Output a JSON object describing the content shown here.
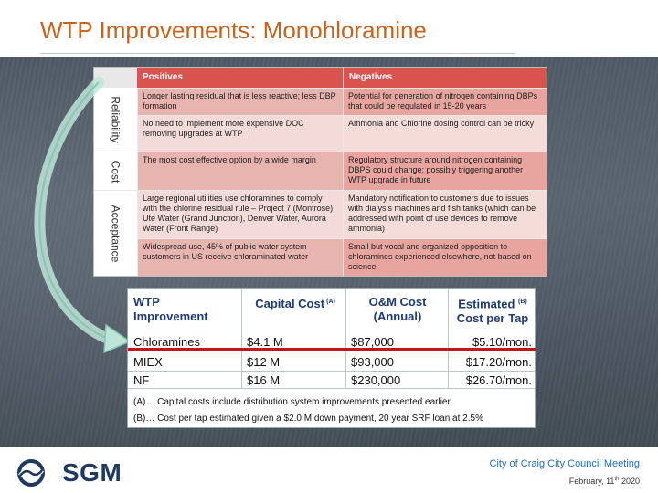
{
  "slide": {
    "title": "WTP Improvements: Monohloramine"
  },
  "pros_cons": {
    "headers": {
      "positives": "Positives",
      "negatives": "Negatives"
    },
    "row_labels": {
      "reliability": "Reliability",
      "cost": "Cost",
      "acceptance": "Acceptance"
    },
    "rows": [
      {
        "positive": "Longer lasting residual that is less reactive; less DBP formation",
        "negative": "Potential for generation of nitrogen containing DBPs that could be regulated in 15-20 years"
      },
      {
        "positive": "No need to implement more expensive DOC removing upgrades at WTP",
        "negative": "Ammonia and Chlorine dosing control can be tricky"
      },
      {
        "positive": "The most cost effective option by a wide margin",
        "negative": "Regulatory structure around nitrogen containing DBPS could change; possibly triggering another WTP upgrade in future"
      },
      {
        "positive": "Large regional utilities use chloramines to comply with the chlorine residual rule – Project 7 (Montrose), Ute Water (Grand Junction), Denver Water, Aurora Water (Front Range)",
        "negative": "Mandatory notification to customers due to issues with dialysis machines and fish tanks (which can be addressed with point of use devices to remove ammonia)"
      },
      {
        "positive": "Widespread use, 45% of public water system customers in US receive chloraminated water",
        "negative": "Small but vocal and organized opposition to chloramines experienced elsewhere, not based on science"
      }
    ]
  },
  "cost_table": {
    "headers": {
      "improvement": "WTP Improvement",
      "capital": "Capital Cost",
      "capital_sup": "(A)",
      "om": "O&M Cost (Annual)",
      "estimated": "Estimated",
      "estimated_sup": "(B)",
      "estimated_rest": "Cost per Tap"
    },
    "rows": [
      {
        "name": "Chloramines",
        "capital": "$4.1 M",
        "om": "$87,000",
        "tap": "$5.10/mon."
      },
      {
        "name": "MIEX",
        "capital": "$12 M",
        "om": "$93,000",
        "tap": "$17.20/mon."
      },
      {
        "name": "NF",
        "capital": "$16 M",
        "om": "$230,000",
        "tap": "$26.70/mon."
      }
    ],
    "notes": [
      "(A)… Capital costs include distribution system improvements presented earlier",
      "(B)… Cost per tap estimated given a $2.0 M down payment, 20 year SRF loan at 2.5%"
    ]
  },
  "footer": {
    "logo_text": "SGM",
    "meeting": "City of Craig City Council Meeting",
    "date_prefix": "February, 11",
    "date_sup": "th",
    "date_suffix": " 2020"
  },
  "colors": {
    "title": "#c8621c",
    "header_red": "#d9534f",
    "highlight_bar": "#c0161c",
    "logo": "#1e3a5f"
  }
}
